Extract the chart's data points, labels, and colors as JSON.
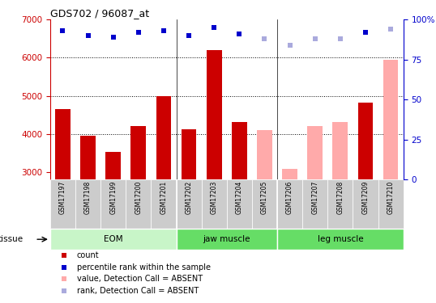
{
  "title": "GDS702 / 96087_at",
  "samples": [
    "GSM17197",
    "GSM17198",
    "GSM17199",
    "GSM17200",
    "GSM17201",
    "GSM17202",
    "GSM17203",
    "GSM17204",
    "GSM17205",
    "GSM17206",
    "GSM17207",
    "GSM17208",
    "GSM17209",
    "GSM17210"
  ],
  "bar_values": [
    4650,
    3950,
    3530,
    4200,
    5000,
    4120,
    6200,
    4320,
    4100,
    3080,
    4200,
    4320,
    4820,
    5950
  ],
  "bar_absent": [
    false,
    false,
    false,
    false,
    false,
    false,
    false,
    false,
    true,
    true,
    true,
    true,
    false,
    true
  ],
  "percentile_values": [
    93,
    90,
    89,
    92,
    93,
    90,
    95,
    91,
    88,
    84,
    88,
    88,
    92,
    94
  ],
  "percentile_absent": [
    false,
    false,
    false,
    false,
    false,
    false,
    false,
    false,
    true,
    true,
    true,
    true,
    false,
    true
  ],
  "ylim_left": [
    2800,
    7000
  ],
  "ylim_right": [
    0,
    100
  ],
  "yticks_left": [
    3000,
    4000,
    5000,
    6000,
    7000
  ],
  "yticks_right": [
    0,
    25,
    50,
    75,
    100
  ],
  "groups": [
    {
      "label": "EOM",
      "start": 0,
      "end": 5
    },
    {
      "label": "jaw muscle",
      "start": 5,
      "end": 9
    },
    {
      "label": "leg muscle",
      "start": 9,
      "end": 14
    }
  ],
  "group_fill_colors": [
    "#c8f5c8",
    "#66dd66",
    "#66dd66"
  ],
  "bar_color_present": "#cc0000",
  "bar_color_absent": "#ffaaaa",
  "dot_color_present": "#0000cc",
  "dot_color_absent": "#aaaadd",
  "bg_color": "#ffffff",
  "sample_box_color": "#cccccc",
  "left_axis_color": "#cc0000",
  "right_axis_color": "#0000cc",
  "legend_items": [
    {
      "label": "count",
      "color": "#cc0000"
    },
    {
      "label": "percentile rank within the sample",
      "color": "#0000cc"
    },
    {
      "label": "value, Detection Call = ABSENT",
      "color": "#ffaaaa"
    },
    {
      "label": "rank, Detection Call = ABSENT",
      "color": "#aaaadd"
    }
  ],
  "tissue_label": "tissue",
  "grid_ticks": [
    4000,
    5000,
    6000
  ],
  "group_separators": [
    5,
    9
  ]
}
